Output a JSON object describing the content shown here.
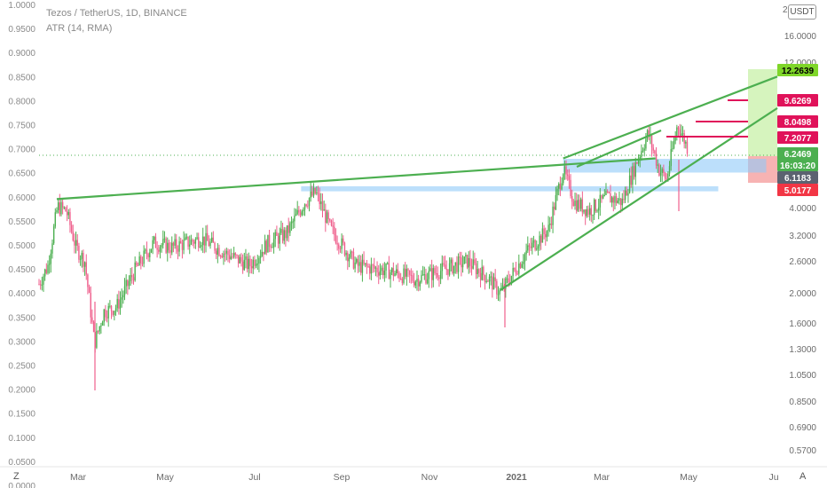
{
  "header": {
    "symbol": "Tezos / TetherUS, 1D, BINANCE",
    "indicator": "ATR (14, RMA)"
  },
  "controls": {
    "currency": "USDT",
    "left_button": "Z",
    "right_button": "A"
  },
  "left_axis_labels": [
    "1.0000",
    "0.9500",
    "0.9000",
    "0.8500",
    "0.8000",
    "0.7500",
    "0.7000",
    "0.6500",
    "0.6000",
    "0.5500",
    "0.5000",
    "0.4500",
    "0.4000",
    "0.3500",
    "0.3000",
    "0.2500",
    "0.2000",
    "0.1500",
    "0.1000",
    "0.0500",
    "0.0000"
  ],
  "right_axis_labels": [
    "16.0000",
    "12.0000",
    "4.0000",
    "3.2000",
    "2.6000",
    "2.0000",
    "1.6000",
    "1.3000",
    "1.0500",
    "0.8500",
    "0.6900",
    "0.5700"
  ],
  "right_axis_top_fragment": "2",
  "x_axis_labels": [
    "Mar",
    "May",
    "Jul",
    "Sep",
    "Nov",
    "2021",
    "Mar",
    "May",
    "Ju"
  ],
  "price_tags": [
    {
      "label": "12.2639",
      "color": "#7fd629",
      "text_color": "#000000"
    },
    {
      "label": "9.6269",
      "color": "#e0125a",
      "text_color": "#ffffff"
    },
    {
      "label": "8.0498",
      "color": "#e0125a",
      "text_color": "#ffffff"
    },
    {
      "label": "7.2077",
      "color": "#e0125a",
      "text_color": "#ffffff"
    },
    {
      "label": "6.2469",
      "color": "#4caf50",
      "text_color": "#ffffff"
    },
    {
      "label": "16:03:20",
      "color": "#4caf50",
      "text_color": "#ffffff"
    },
    {
      "label": "6.1183",
      "color": "#5b6270",
      "text_color": "#ffffff"
    },
    {
      "label": "5.0177",
      "color": "#f23645",
      "text_color": "#ffffff"
    }
  ],
  "colors": {
    "up": "#4caf50",
    "down": "#ef5f8c",
    "trendline": "#4caf50",
    "zone": "#90caf9",
    "target_zone": "#c8f0a8",
    "stop_zone": "#f6a6a6",
    "resistance": "#e0125a",
    "grid_text": "#8a8a8a"
  },
  "chart_data": {
    "type": "candlestick",
    "title": "Tezos / TetherUS, 1D, BINANCE",
    "series_keypoints": [
      {
        "t": 0,
        "v": 0.39
      },
      {
        "t": 0.012,
        "v": 0.43
      },
      {
        "t": 0.025,
        "v": 0.56
      },
      {
        "t": 0.037,
        "v": 0.55
      },
      {
        "t": 0.05,
        "v": 0.47
      },
      {
        "t": 0.062,
        "v": 0.44
      },
      {
        "t": 0.075,
        "v": 0.26
      },
      {
        "t": 0.088,
        "v": 0.33
      },
      {
        "t": 0.105,
        "v": 0.34
      },
      {
        "t": 0.13,
        "v": 0.42
      },
      {
        "t": 0.155,
        "v": 0.48
      },
      {
        "t": 0.18,
        "v": 0.47
      },
      {
        "t": 0.22,
        "v": 0.49
      },
      {
        "t": 0.25,
        "v": 0.46
      },
      {
        "t": 0.285,
        "v": 0.43
      },
      {
        "t": 0.31,
        "v": 0.48
      },
      {
        "t": 0.335,
        "v": 0.5
      },
      {
        "t": 0.36,
        "v": 0.57
      },
      {
        "t": 0.375,
        "v": 0.59
      },
      {
        "t": 0.395,
        "v": 0.51
      },
      {
        "t": 0.43,
        "v": 0.43
      },
      {
        "t": 0.47,
        "v": 0.42
      },
      {
        "t": 0.51,
        "v": 0.4
      },
      {
        "t": 0.545,
        "v": 0.42
      },
      {
        "t": 0.58,
        "v": 0.44
      },
      {
        "t": 0.61,
        "v": 0.4
      },
      {
        "t": 0.625,
        "v": 0.37
      },
      {
        "t": 0.66,
        "v": 0.46
      },
      {
        "t": 0.69,
        "v": 0.51
      },
      {
        "t": 0.71,
        "v": 0.64
      },
      {
        "t": 0.725,
        "v": 0.57
      },
      {
        "t": 0.745,
        "v": 0.55
      },
      {
        "t": 0.77,
        "v": 0.58
      },
      {
        "t": 0.79,
        "v": 0.57
      },
      {
        "t": 0.81,
        "v": 0.66
      },
      {
        "t": 0.825,
        "v": 0.72
      },
      {
        "t": 0.84,
        "v": 0.64
      },
      {
        "t": 0.85,
        "v": 0.62
      },
      {
        "t": 0.865,
        "v": 0.74
      },
      {
        "t": 0.878,
        "v": 0.69
      }
    ],
    "trendlines": [
      {
        "from": [
          0.024,
          0.576
        ],
        "to": [
          0.835,
          0.665
        ]
      },
      {
        "from": [
          0.625,
          0.377
        ],
        "to": [
          1.0,
          0.775
        ]
      },
      {
        "from": [
          0.71,
          0.665
        ],
        "to": [
          1.0,
          0.844
        ]
      }
    ],
    "zones": [
      {
        "from_t": 0.355,
        "to_t": 0.92,
        "low": 0.593,
        "high": 0.604
      },
      {
        "from_t": 0.71,
        "to_t": 0.985,
        "low": 0.634,
        "high": 0.664
      }
    ],
    "yrange": [
      0.0,
      1.0
    ],
    "grid": false,
    "legend": "none"
  }
}
